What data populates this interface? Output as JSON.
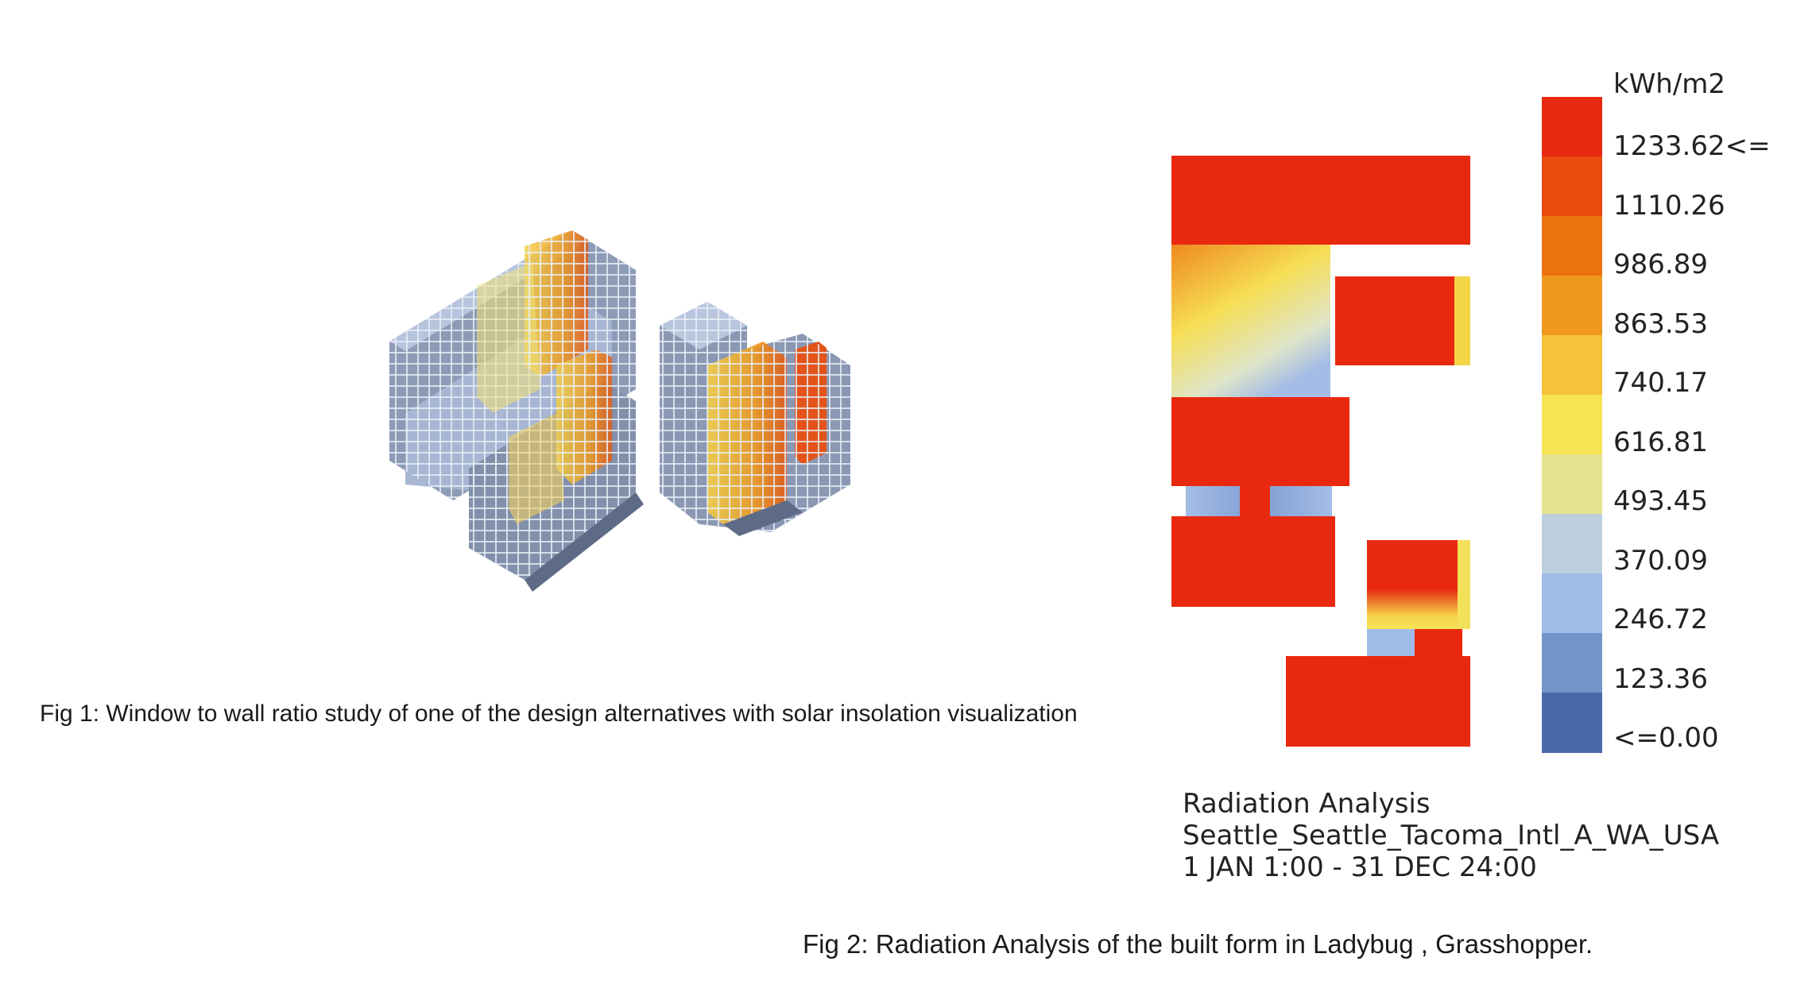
{
  "figure1": {
    "caption": "Fig 1: Window to wall ratio study of one of the design alternatives with solar insolation visualization"
  },
  "figure2": {
    "caption": "Fig 2: Radiation Analysis of the built form in Ladybug , Grasshopper.",
    "legend": {
      "unit": "kWh/m2",
      "labels": [
        "1233.62<=",
        "1110.26",
        "986.89",
        "863.53",
        "740.17",
        "616.81",
        "493.45",
        "370.09",
        "246.72",
        "123.36",
        "<=0.00"
      ],
      "colors": [
        "#e8290f",
        "#ea4a0c",
        "#ec7210",
        "#ef9820",
        "#f7c23a",
        "#f6e455",
        "#e4e38e",
        "#bccfdd",
        "#9fbbe8",
        "#7394c9",
        "#4a69a8"
      ]
    },
    "info": {
      "title": "Radiation Analysis",
      "location": "Seattle_Seattle_Tacoma_Intl_A_WA_USA",
      "period": "1 JAN 1:00 - 31 DEC 24:00"
    }
  },
  "colors": {
    "red": "#e8290f",
    "orange": "#ef8a1c",
    "yellow": "#f5e25a",
    "paleyellow": "#efe9a6",
    "blue": "#8fa8d8",
    "grey": "#8a96ad"
  }
}
